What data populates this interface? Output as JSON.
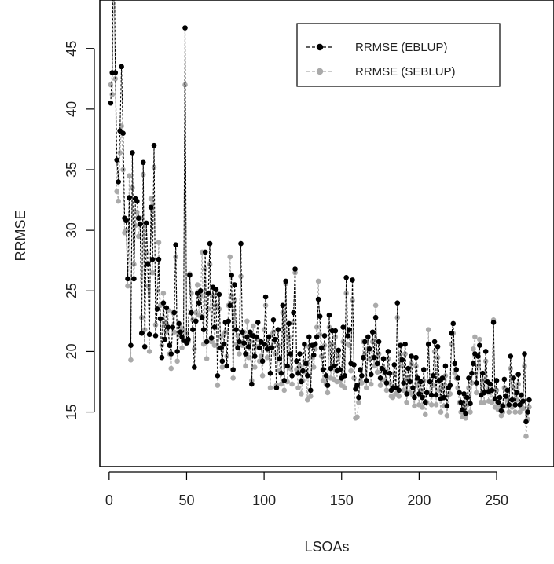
{
  "chart_data": {
    "type": "line",
    "xlabel": "LSOAs",
    "ylabel": "RRMSE",
    "xlim": [
      -6,
      287
    ],
    "ylim": [
      10.5,
      49
    ],
    "x_ticks": [
      0,
      50,
      100,
      150,
      200,
      250
    ],
    "y_ticks": [
      15,
      20,
      25,
      30,
      35,
      40,
      45
    ],
    "legend_position": "top-right",
    "grid": false,
    "series": [
      {
        "name": "RRMSE (EBLUP)",
        "color": "#000000",
        "values": [
          40.5,
          43.0,
          56.0,
          43.0,
          35.8,
          34.0,
          38.2,
          43.5,
          38.0,
          31.0,
          30.8,
          26.0,
          32.7,
          20.5,
          36.4,
          26.0,
          32.6,
          32.4,
          31.0,
          30.5,
          21.5,
          35.6,
          20.4,
          30.6,
          27.2,
          21.4,
          31.9,
          27.6,
          37.0,
          21.3,
          23.5,
          27.6,
          22.7,
          19.5,
          24.0,
          21.0,
          23.6,
          22.0,
          20.5,
          19.8,
          22.0,
          23.2,
          28.8,
          20.0,
          22.3,
          21.6,
          21.2,
          20.9,
          46.7,
          20.7,
          21.0,
          26.3,
          23.2,
          21.8,
          18.7,
          22.5,
          24.8,
          24.0,
          25.0,
          22.8,
          21.8,
          28.2,
          20.8,
          24.8,
          28.9,
          21.1,
          25.3,
          22.0,
          25.1,
          18.0,
          24.7,
          20.3,
          19.2,
          20.6,
          22.4,
          18.8,
          22.5,
          23.8,
          26.3,
          18.5,
          25.5,
          21.8,
          20.3,
          20.8,
          28.9,
          21.6,
          20.7,
          19.8,
          21.2,
          20.4,
          21.6,
          17.3,
          21.3,
          19.6,
          21.2,
          22.4,
          20.3,
          20.8,
          19.2,
          20.6,
          24.5,
          20.2,
          21.2,
          18.2,
          20.3,
          22.6,
          21.0,
          17.0,
          21.8,
          19.4,
          18.2,
          23.8,
          17.6,
          25.8,
          18.8,
          22.3,
          19.8,
          18.0,
          23.2,
          26.8,
          19.2,
          18.2,
          19.8,
          17.5,
          18.4,
          20.6,
          19.0,
          18.0,
          21.2,
          16.8,
          20.5,
          19.7,
          20.6,
          21.2,
          24.3,
          22.9,
          20.3,
          18.5,
          21.3,
          18.0,
          17.2,
          23.0,
          18.6,
          21.7,
          18.8,
          21.7,
          18.4,
          20.1,
          18.5,
          17.8,
          22.0,
          18.0,
          26.1,
          21.3,
          21.8,
          19.0,
          25.9,
          18.9,
          16.9,
          17.2,
          16.2,
          18.5,
          18.0,
          19.5,
          20.8,
          17.6,
          21.2,
          20.2,
          18.1,
          21.6,
          19.5,
          22.8,
          19.0,
          20.8,
          17.8,
          18.6,
          19.4,
          18.3,
          17.4,
          20.0,
          18.2,
          16.8,
          17.0,
          18.9,
          17.0,
          24.0,
          16.8,
          20.5,
          19.3,
          17.4,
          20.6,
          16.5,
          18.6,
          17.5,
          19.6,
          17.0,
          16.2,
          19.5,
          17.8,
          16.5,
          17.5,
          16.2,
          18.5,
          15.8,
          16.6,
          20.6,
          17.5,
          16.4,
          18.0,
          20.8,
          16.4,
          20.4,
          17.6,
          16.1,
          17.8,
          16.2,
          18.8,
          15.5,
          17.0,
          17.2,
          21.5,
          22.3,
          19.0,
          18.5,
          17.8,
          16.6,
          15.8,
          15.2,
          16.5,
          14.9,
          16.2,
          17.8,
          15.7,
          18.2,
          19.0,
          19.8,
          17.4,
          19.6,
          20.5,
          16.4,
          18.2,
          16.6,
          20.0,
          17.5,
          16.7,
          17.3,
          16.8,
          22.4,
          16.1,
          17.6,
          15.8,
          16.2,
          15.1,
          15.5,
          17.7,
          16.3,
          16.8,
          15.6,
          19.6,
          16.0,
          17.8,
          15.6,
          16.6,
          18.1,
          15.6,
          16.4,
          15.9,
          19.8,
          14.2,
          15.0,
          16.0
        ]
      },
      {
        "name": "RRMSE (SEBLUP)",
        "color": "#aaaaaa",
        "values": [
          42.0,
          41.2,
          52.0,
          42.5,
          33.2,
          32.4,
          36.4,
          38.6,
          35.0,
          29.8,
          30.0,
          25.4,
          34.5,
          19.3,
          33.5,
          27.2,
          30.4,
          31.5,
          29.5,
          31.0,
          22.8,
          34.6,
          21.8,
          28.2,
          25.4,
          20.0,
          32.6,
          26.5,
          35.2,
          22.2,
          25.0,
          29.0,
          23.8,
          20.5,
          24.8,
          22.3,
          21.6,
          23.4,
          19.8,
          18.6,
          23.2,
          21.6,
          27.8,
          19.2,
          21.4,
          22.0,
          20.3,
          21.8,
          42.0,
          21.5,
          20.8,
          26.4,
          24.8,
          22.6,
          20.2,
          23.2,
          25.5,
          23.0,
          24.6,
          28.2,
          20.6,
          26.8,
          19.4,
          23.5,
          27.2,
          20.8,
          24.6,
          20.5,
          23.8,
          17.2,
          23.5,
          21.2,
          18.7,
          21.4,
          21.6,
          19.6,
          23.8,
          27.8,
          24.6,
          17.8,
          24.2,
          20.6,
          21.3,
          19.8,
          26.2,
          20.5,
          21.6,
          18.8,
          22.5,
          19.5,
          20.8,
          17.6,
          22.1,
          18.7,
          20.4,
          21.0,
          19.2,
          19.6,
          18.0,
          21.8,
          23.8,
          19.5,
          20.4,
          17.0,
          21.4,
          21.6,
          19.8,
          17.2,
          20.5,
          18.4,
          17.3,
          23.2,
          16.8,
          25.6,
          17.5,
          21.2,
          18.6,
          17.3,
          22.4,
          26.5,
          18.5,
          17.0,
          18.8,
          16.5,
          17.6,
          19.2,
          18.3,
          16.0,
          20.4,
          16.3,
          19.5,
          18.7,
          20.2,
          22.0,
          25.8,
          21.4,
          19.6,
          17.6,
          20.5,
          17.3,
          16.6,
          22.0,
          17.8,
          20.6,
          17.7,
          21.2,
          17.5,
          19.6,
          17.6,
          17.2,
          20.8,
          17.0,
          24.8,
          20.6,
          20.5,
          18.4,
          24.2,
          17.8,
          14.5,
          14.6,
          15.8,
          17.6,
          17.4,
          20.8,
          19.8,
          17.0,
          20.2,
          19.4,
          17.3,
          20.8,
          18.8,
          23.8,
          18.3,
          19.8,
          17.2,
          17.7,
          18.6,
          17.6,
          16.8,
          19.4,
          17.4,
          16.3,
          16.2,
          18.2,
          16.5,
          22.8,
          16.3,
          19.8,
          18.8,
          16.8,
          19.8,
          15.8,
          17.8,
          16.6,
          19.0,
          16.4,
          15.5,
          18.8,
          17.2,
          15.6,
          16.8,
          15.4,
          17.6,
          14.8,
          15.8,
          21.8,
          16.6,
          15.6,
          17.2,
          20.0,
          15.6,
          19.5,
          16.8,
          15.0,
          17.2,
          15.5,
          18.0,
          14.7,
          16.4,
          16.5,
          20.6,
          21.5,
          18.2,
          17.8,
          17.0,
          15.8,
          15.0,
          14.6,
          15.8,
          14.5,
          15.6,
          17.0,
          15.0,
          17.4,
          20.2,
          21.2,
          16.6,
          18.8,
          21.0,
          15.8,
          17.6,
          15.8,
          19.2,
          16.8,
          15.9,
          16.6,
          15.8,
          22.6,
          15.4,
          16.8,
          15.2,
          15.6,
          14.7,
          15.0,
          17.0,
          15.5,
          16.0,
          15.0,
          18.6,
          15.4,
          17.0,
          15.0,
          16.0,
          17.3,
          15.0,
          15.6,
          15.3,
          18.8,
          13.0,
          14.4,
          15.4
        ]
      }
    ]
  }
}
